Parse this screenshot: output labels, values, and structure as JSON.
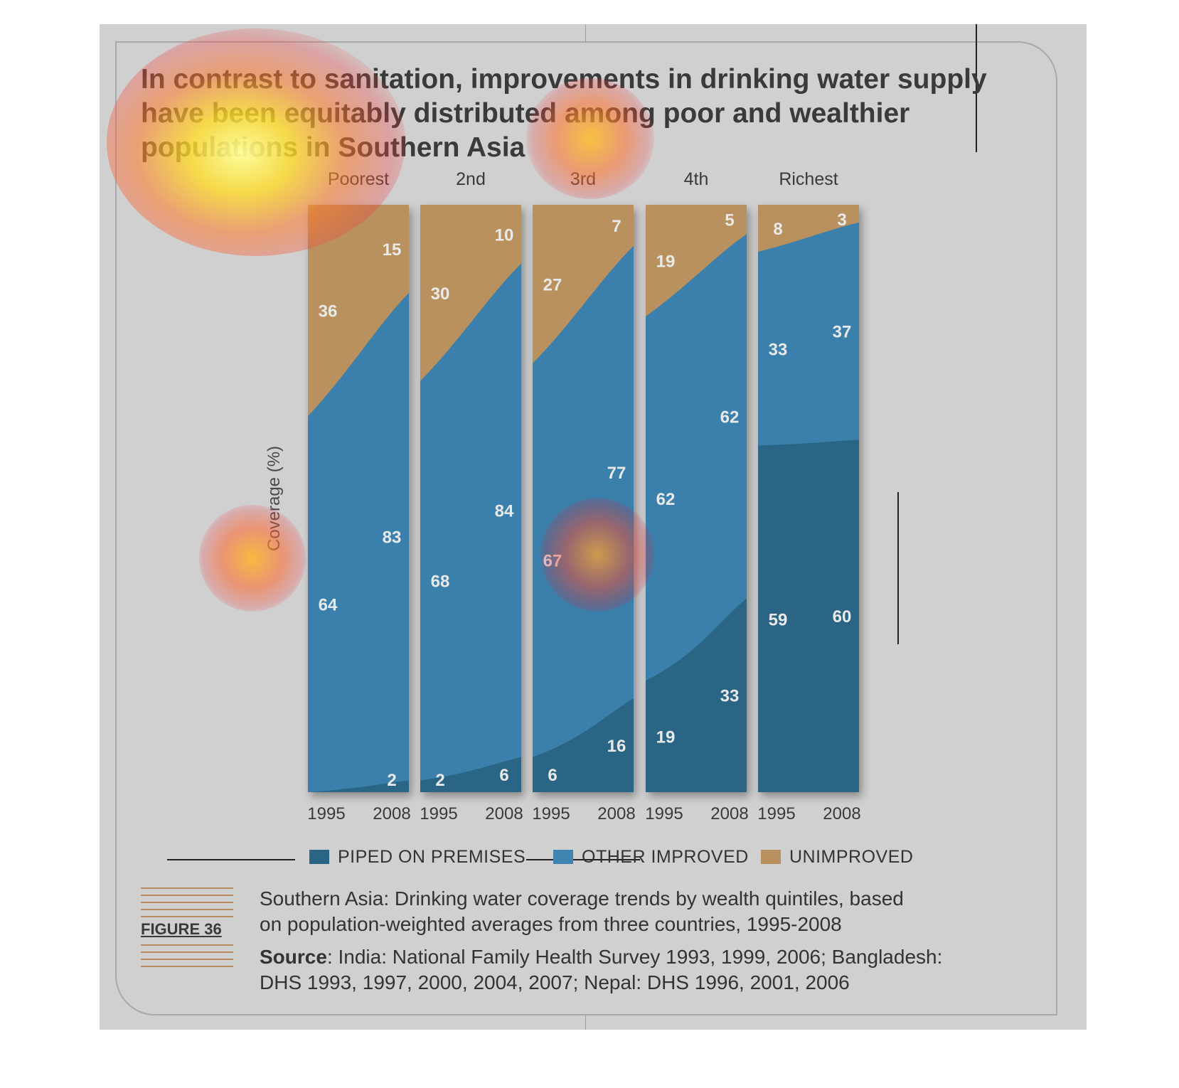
{
  "title_lines": [
    "In contrast to sanitation, improvements in drinking water supply",
    "have been equitably distributed among poor and wealthier",
    "populations in Southern Asia"
  ],
  "figure_label": "FIGURE 36",
  "caption": {
    "description_lines": [
      "Southern Asia: Drinking water coverage trends by wealth quintiles, based",
      "on population-weighted averages from three countries, 1995-2008"
    ],
    "source_label": "Source",
    "source_lines": [
      ": India: National Family Health Survey 1993, 1999, 2006; Bangladesh:",
      "DHS 1993, 1997, 2000, 2004, 2007; Nepal: DHS 1996, 2001, 2006"
    ]
  },
  "legend": [
    {
      "label": "PIPED ON PREMISES",
      "color": "#2b6585"
    },
    {
      "label": "OTHER IMPROVED",
      "color": "#3f85b1"
    },
    {
      "label": "UNIMPROVED",
      "color": "#b8915f"
    }
  ],
  "colors": {
    "piped": "#2b6585",
    "other": "#3b80ac",
    "unimproved": "#b8915f",
    "panel": "#d0d0d0"
  },
  "chart_data": {
    "type": "area",
    "ylabel": "Coverage (%)",
    "ylim": [
      0,
      100
    ],
    "groups": [
      {
        "name": "Poorest",
        "x": [
          "1995",
          "2008"
        ],
        "piped": [
          0,
          2
        ],
        "other": [
          64,
          83
        ],
        "unimproved": [
          36,
          15
        ],
        "labels": {
          "piped": [
            "",
            "2"
          ],
          "other": [
            "64",
            "83"
          ],
          "unimproved": [
            "36",
            "15"
          ]
        }
      },
      {
        "name": "2nd",
        "x": [
          "1995",
          "2008"
        ],
        "piped": [
          2,
          6
        ],
        "other": [
          68,
          84
        ],
        "unimproved": [
          30,
          10
        ],
        "labels": {
          "piped": [
            "2",
            "6"
          ],
          "other": [
            "68",
            "84"
          ],
          "unimproved": [
            "30",
            "10"
          ]
        }
      },
      {
        "name": "3rd",
        "x": [
          "1995",
          "2008"
        ],
        "piped": [
          6,
          16
        ],
        "other": [
          67,
          77
        ],
        "unimproved": [
          27,
          7
        ],
        "labels": {
          "piped": [
            "6",
            "16"
          ],
          "other": [
            "67",
            "77"
          ],
          "unimproved": [
            "27",
            "7"
          ]
        }
      },
      {
        "name": "4th",
        "x": [
          "1995",
          "2008"
        ],
        "piped": [
          19,
          33
        ],
        "other": [
          62,
          62
        ],
        "unimproved": [
          19,
          5
        ],
        "labels": {
          "piped": [
            "19",
            "33"
          ],
          "other": [
            "62",
            "62"
          ],
          "unimproved": [
            "19",
            "5"
          ]
        }
      },
      {
        "name": "Richest",
        "x": [
          "1995",
          "2008"
        ],
        "piped": [
          59,
          60
        ],
        "other": [
          33,
          37
        ],
        "unimproved": [
          8,
          3
        ],
        "labels": {
          "piped": [
            "59",
            "60"
          ],
          "other": [
            "33",
            "37"
          ],
          "unimproved": [
            "8",
            "3"
          ]
        }
      }
    ]
  }
}
